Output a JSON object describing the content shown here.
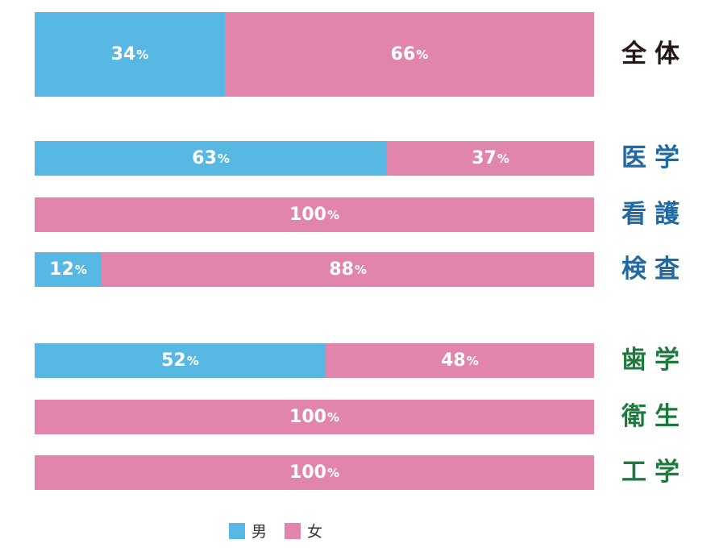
{
  "colors": {
    "male": "#57b8e3",
    "female": "#e185ad"
  },
  "chart_data": {
    "type": "bar",
    "orientation": "horizontal",
    "stacked": true,
    "percent_suffix": "%",
    "categories": [
      "全体",
      "医学",
      "看護",
      "検査",
      "歯学",
      "衛生",
      "工学"
    ],
    "category_colors": [
      "#231815",
      "#1f6aa5",
      "#1f6aa5",
      "#1f6aa5",
      "#1e7a3c",
      "#1e7a3c",
      "#1e7a3c"
    ],
    "series": [
      {
        "name": "男",
        "values": [
          34,
          63,
          0,
          12,
          52,
          0,
          0
        ]
      },
      {
        "name": "女",
        "values": [
          66,
          37,
          100,
          88,
          48,
          100,
          100
        ]
      }
    ],
    "xlim": [
      0,
      100
    ],
    "legend": {
      "position": "bottom-center",
      "items": [
        "男",
        "女"
      ]
    }
  }
}
